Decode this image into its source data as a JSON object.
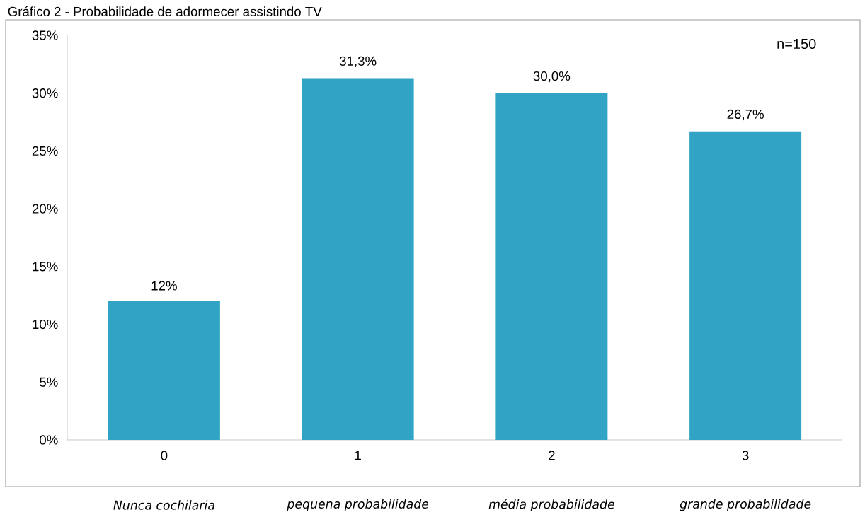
{
  "chart_data": {
    "type": "bar",
    "title": "Gráfico 2 - Probabilidade de adormecer assistindo TV",
    "categories": [
      "0",
      "1",
      "2",
      "3"
    ],
    "values": [
      12,
      31.3,
      30.0,
      26.7
    ],
    "value_labels": [
      "12%",
      "31,3%",
      "30,0%",
      "26,7%"
    ],
    "color": "#31a3c4",
    "ylim": [
      0,
      35
    ],
    "yticks": [
      {
        "value": 0,
        "label": "0%"
      },
      {
        "value": 5,
        "label": "5%"
      },
      {
        "value": 10,
        "label": "10%"
      },
      {
        "value": 15,
        "label": "15%"
      },
      {
        "value": 20,
        "label": "20%"
      },
      {
        "value": 25,
        "label": "25%"
      },
      {
        "value": 30,
        "label": "30%"
      },
      {
        "value": 35,
        "label": "35%"
      }
    ],
    "annotations": [
      "n=150",
      "Nunca cochilaria",
      "pequena probabilidade",
      "média probabilidade",
      "grande probabilidade"
    ]
  }
}
